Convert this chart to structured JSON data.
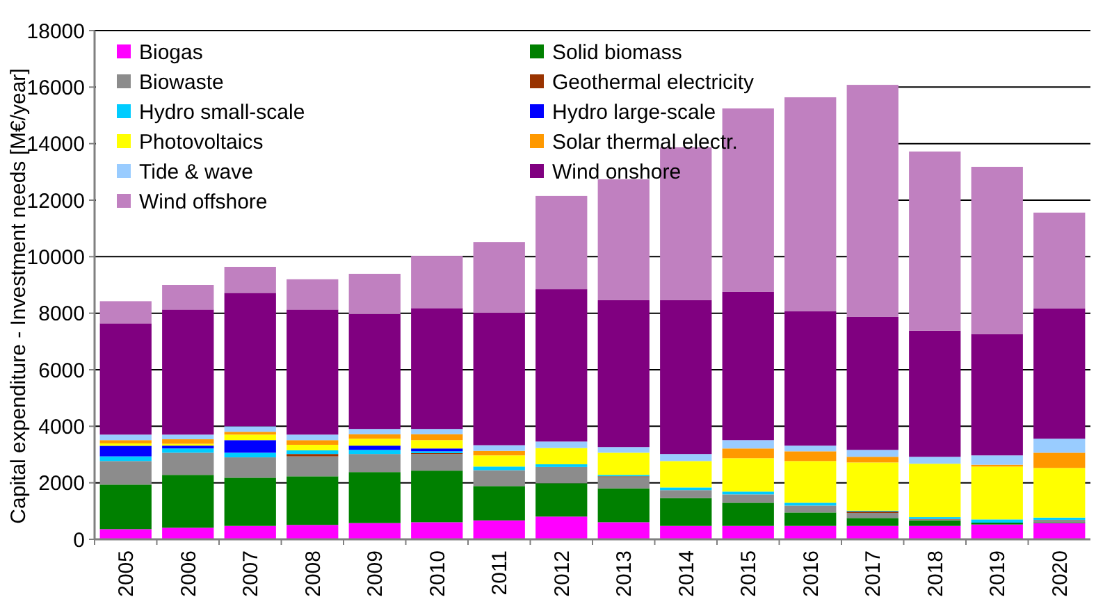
{
  "chart_data": {
    "type": "bar",
    "stacked": true,
    "ylabel": "Capital expenditure - Investment needs [M€/year]",
    "categories": [
      "2005",
      "2006",
      "2007",
      "2008",
      "2009",
      "2010",
      "2011",
      "2012",
      "2013",
      "2014",
      "2015",
      "2016",
      "2017",
      "2018",
      "2019",
      "2020"
    ],
    "series": [
      {
        "name": "Biogas",
        "color": "#ff00ff",
        "values": [
          360,
          410,
          475,
          510,
          575,
          605,
          670,
          805,
          605,
          475,
          475,
          475,
          475,
          475,
          525,
          575
        ]
      },
      {
        "name": "Solid biomass",
        "color": "#008000",
        "values": [
          1575,
          1870,
          1705,
          1720,
          1805,
          1825,
          1215,
          1180,
          1200,
          985,
          820,
          475,
          280,
          195,
          65,
          30
        ]
      },
      {
        "name": "Biowaste",
        "color": "#8c8c8c",
        "values": [
          835,
          785,
          720,
          705,
          640,
          590,
          560,
          575,
          395,
          280,
          295,
          245,
          180,
          30,
          0,
          85
        ]
      },
      {
        "name": "Geothermal electricity",
        "color": "#993300",
        "values": [
          0,
          0,
          0,
          85,
          0,
          30,
          0,
          0,
          30,
          0,
          0,
          0,
          50,
          20,
          0,
          0
        ]
      },
      {
        "name": "Hydro small-scale",
        "color": "#00ccff",
        "values": [
          165,
          150,
          165,
          130,
          145,
          65,
          130,
          95,
          50,
          95,
          100,
          100,
          30,
          65,
          115,
          80
        ]
      },
      {
        "name": "Hydro large-scale",
        "color": "#0000ff",
        "values": [
          375,
          100,
          445,
          0,
          150,
          100,
          0,
          0,
          0,
          0,
          0,
          0,
          0,
          0,
          0,
          0
        ]
      },
      {
        "name": "Photovoltaics",
        "color": "#ffff00",
        "values": [
          85,
          65,
          195,
          195,
          245,
          295,
          395,
          575,
          785,
          935,
          1180,
          1475,
          1705,
          1890,
          1870,
          1755
        ]
      },
      {
        "name": "Solar thermal electr.",
        "color": "#ff9900",
        "values": [
          115,
          160,
          100,
          165,
          160,
          210,
          160,
          0,
          0,
          0,
          345,
          345,
          200,
          0,
          65,
          540
        ]
      },
      {
        "name": "Tide & wave",
        "color": "#99ccff",
        "values": [
          195,
          165,
          195,
          195,
          185,
          185,
          200,
          230,
          200,
          250,
          295,
          200,
          245,
          245,
          330,
          495
        ]
      },
      {
        "name": "Wind onshore",
        "color": "#800080",
        "values": [
          3935,
          4425,
          4720,
          4425,
          4065,
          4275,
          4685,
          5390,
          5195,
          5440,
          5245,
          4750,
          4705,
          4460,
          4295,
          4605
        ]
      },
      {
        "name": "Wind offshore",
        "color": "#c080c0",
        "values": [
          785,
          870,
          920,
          1070,
          1425,
          1850,
          2505,
          3300,
          4280,
          5410,
          6490,
          7575,
          8210,
          6340,
          5915,
          3395
        ]
      }
    ],
    "ylim": [
      0,
      18000
    ],
    "yticks": [
      0,
      2000,
      4000,
      6000,
      8000,
      10000,
      12000,
      14000,
      16000,
      18000
    ],
    "grid": "y",
    "legend": "top left"
  }
}
